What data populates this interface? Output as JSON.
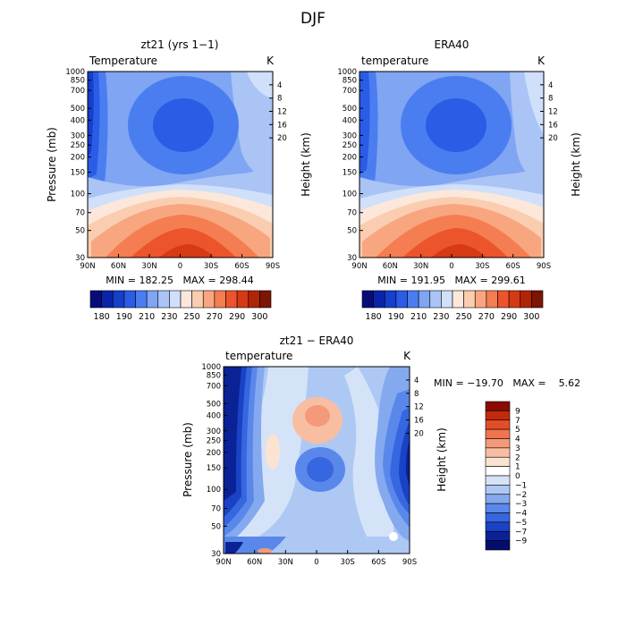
{
  "figure": {
    "title": "DJF"
  },
  "pressure_ticks": [
    "30",
    "50",
    "70",
    "100",
    "150",
    "200",
    "250",
    "300",
    "400",
    "500",
    "700",
    "850",
    "1000"
  ],
  "height_ticks": [
    "20",
    "16",
    "12",
    "8",
    "4"
  ],
  "lat_ticks": [
    "90N",
    "60N",
    "30N",
    "0",
    "30S",
    "60S",
    "90S"
  ],
  "colorbar_main": {
    "labels": [
      "180",
      "190",
      "210",
      "230",
      "250",
      "270",
      "290",
      "300"
    ],
    "colors": [
      "#060d7a",
      "#0a24a8",
      "#1440cc",
      "#2a5ce6",
      "#4a7ef0",
      "#7fa5f3",
      "#a9c4f5",
      "#d0e0fa",
      "#fbe8da",
      "#fbcdb0",
      "#f8a67f",
      "#f47d52",
      "#ec542c",
      "#d63a12",
      "#b02408",
      "#7c1504"
    ]
  },
  "colorbar_diff": {
    "labels": [
      "9",
      "7",
      "5",
      "4",
      "3",
      "2",
      "1",
      "0",
      "−1",
      "−2",
      "−3",
      "−4",
      "−5",
      "−7",
      "−9"
    ],
    "colors": [
      "#8b0a02",
      "#c22a0c",
      "#e24e26",
      "#f07450",
      "#f49a78",
      "#f8bea2",
      "#fbe3d2",
      "#ffffff",
      "#d5e3f8",
      "#aec8f4",
      "#85a9ef",
      "#5a88ea",
      "#3666e0",
      "#1a42c4",
      "#0a2296",
      "#040d6e"
    ]
  },
  "panels": {
    "left": {
      "title": "zt21 (yrs 1−1)",
      "variable": "Temperature",
      "unit": "K",
      "stats": "MIN = 182.25   MAX = 298.44"
    },
    "right": {
      "title": "ERA40",
      "variable": "temperature",
      "unit": "K",
      "stats": "MIN = 191.95   MAX = 299.61"
    },
    "diff": {
      "title": "zt21 − ERA40",
      "variable": "temperature",
      "unit": "K",
      "stats": "MIN = −19.70   MAX =    5.62"
    }
  },
  "axes": {
    "ylabel_left": "Pressure (mb)",
    "ylabel_right": "Height (km)"
  },
  "chart_data": [
    {
      "type": "heatmap",
      "title": "zt21 (yrs 1−1)",
      "subtitle": "Temperature",
      "unit": "K",
      "x": [
        "90N",
        "60N",
        "30N",
        "0",
        "30S",
        "60S",
        "90S"
      ],
      "y_pressure_mb": [
        30,
        50,
        70,
        100,
        150,
        200,
        250,
        300,
        400,
        500,
        700,
        850,
        1000
      ],
      "y_height_km": [
        20,
        16,
        12,
        8,
        4
      ],
      "min": 182.25,
      "max": 298.44,
      "grid": false
    },
    {
      "type": "heatmap",
      "title": "ERA40",
      "subtitle": "temperature",
      "unit": "K",
      "x": [
        "90N",
        "60N",
        "30N",
        "0",
        "30S",
        "60S",
        "90S"
      ],
      "y_pressure_mb": [
        30,
        50,
        70,
        100,
        150,
        200,
        250,
        300,
        400,
        500,
        700,
        850,
        1000
      ],
      "y_height_km": [
        20,
        16,
        12,
        8,
        4
      ],
      "min": 191.95,
      "max": 299.61,
      "grid": false
    },
    {
      "type": "heatmap",
      "title": "zt21 − ERA40",
      "subtitle": "temperature",
      "unit": "K",
      "x": [
        "90N",
        "60N",
        "30N",
        "0",
        "30S",
        "60S",
        "90S"
      ],
      "y_pressure_mb": [
        30,
        50,
        70,
        100,
        150,
        200,
        250,
        300,
        400,
        500,
        700,
        850,
        1000
      ],
      "y_height_km": [
        20,
        16,
        12,
        8,
        4
      ],
      "min": -19.7,
      "max": 5.62,
      "grid": false
    }
  ]
}
